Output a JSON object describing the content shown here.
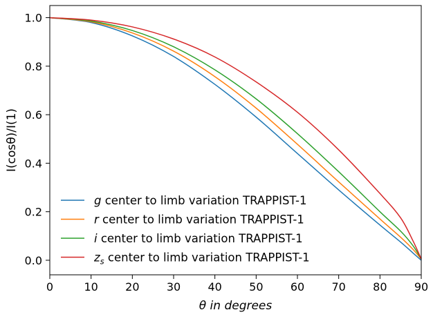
{
  "chart_data": {
    "type": "line",
    "xlabel": "θ in degrees",
    "ylabel": "I(cosθ)/I(1)",
    "xlim": [
      0,
      90
    ],
    "ylim": [
      -0.06,
      1.05
    ],
    "xticks": [
      "0",
      "10",
      "20",
      "30",
      "40",
      "50",
      "60",
      "70",
      "80",
      "90"
    ],
    "yticks": [
      "0.0",
      "0.2",
      "0.4",
      "0.6",
      "0.8",
      "1.0"
    ],
    "grid": false,
    "legend_position": "lower-left",
    "x": [
      0,
      10,
      20,
      30,
      40,
      50,
      60,
      70,
      80,
      85,
      88,
      90
    ],
    "series": [
      {
        "name": "g center to limb variation TRAPPIST-1",
        "name_parts": [
          "g",
          "",
          " center to limb variation TRAPPIST-1"
        ],
        "color": "#1f77b4",
        "values": [
          1.0,
          0.98,
          0.925,
          0.84,
          0.725,
          0.59,
          0.44,
          0.29,
          0.145,
          0.075,
          0.03,
          0.0
        ]
      },
      {
        "name": "r center to limb variation TRAPPIST-1",
        "name_parts": [
          "r",
          "",
          " center to limb variation TRAPPIST-1"
        ],
        "color": "#ff7f0e",
        "values": [
          1.0,
          0.983,
          0.937,
          0.862,
          0.757,
          0.627,
          0.478,
          0.323,
          0.17,
          0.095,
          0.045,
          0.005
        ]
      },
      {
        "name": "i center to limb variation TRAPPIST-1",
        "name_parts": [
          "i",
          "",
          " center to limb variation TRAPPIST-1"
        ],
        "color": "#2ca02c",
        "values": [
          1.0,
          0.986,
          0.947,
          0.88,
          0.785,
          0.665,
          0.522,
          0.365,
          0.2,
          0.12,
          0.06,
          0.005
        ]
      },
      {
        "name": "zs center to limb variation TRAPPIST-1",
        "name_parts": [
          "z",
          "s",
          " center to limb variation TRAPPIST-1"
        ],
        "color": "#d62728",
        "values": [
          1.0,
          0.99,
          0.962,
          0.912,
          0.838,
          0.735,
          0.61,
          0.455,
          0.275,
          0.175,
          0.08,
          0.005
        ]
      }
    ]
  }
}
